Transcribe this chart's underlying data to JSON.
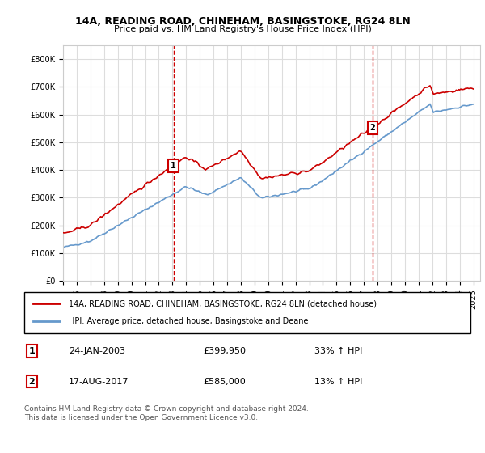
{
  "title": "14A, READING ROAD, CHINEHAM, BASINGSTOKE, RG24 8LN",
  "subtitle": "Price paid vs. HM Land Registry's House Price Index (HPI)",
  "legend_line1": "14A, READING ROAD, CHINEHAM, BASINGSTOKE, RG24 8LN (detached house)",
  "legend_line2": "HPI: Average price, detached house, Basingstoke and Deane",
  "annotation1_label": "1",
  "annotation1_date": "24-JAN-2003",
  "annotation1_price": "£399,950",
  "annotation1_hpi": "33% ↑ HPI",
  "annotation1_year": 2003.07,
  "annotation1_value": 399950,
  "annotation2_label": "2",
  "annotation2_date": "17-AUG-2017",
  "annotation2_price": "£585,000",
  "annotation2_hpi": "13% ↑ HPI",
  "annotation2_year": 2017.63,
  "annotation2_value": 585000,
  "footer": "Contains HM Land Registry data © Crown copyright and database right 2024.\nThis data is licensed under the Open Government Licence v3.0.",
  "red_color": "#cc0000",
  "blue_color": "#6699cc",
  "background_color": "#ffffff",
  "grid_color": "#dddddd",
  "ylim": [
    0,
    850000
  ],
  "yticks": [
    0,
    100000,
    200000,
    300000,
    400000,
    500000,
    600000,
    700000,
    800000
  ],
  "xlim_start": 1995.0,
  "xlim_end": 2025.5
}
